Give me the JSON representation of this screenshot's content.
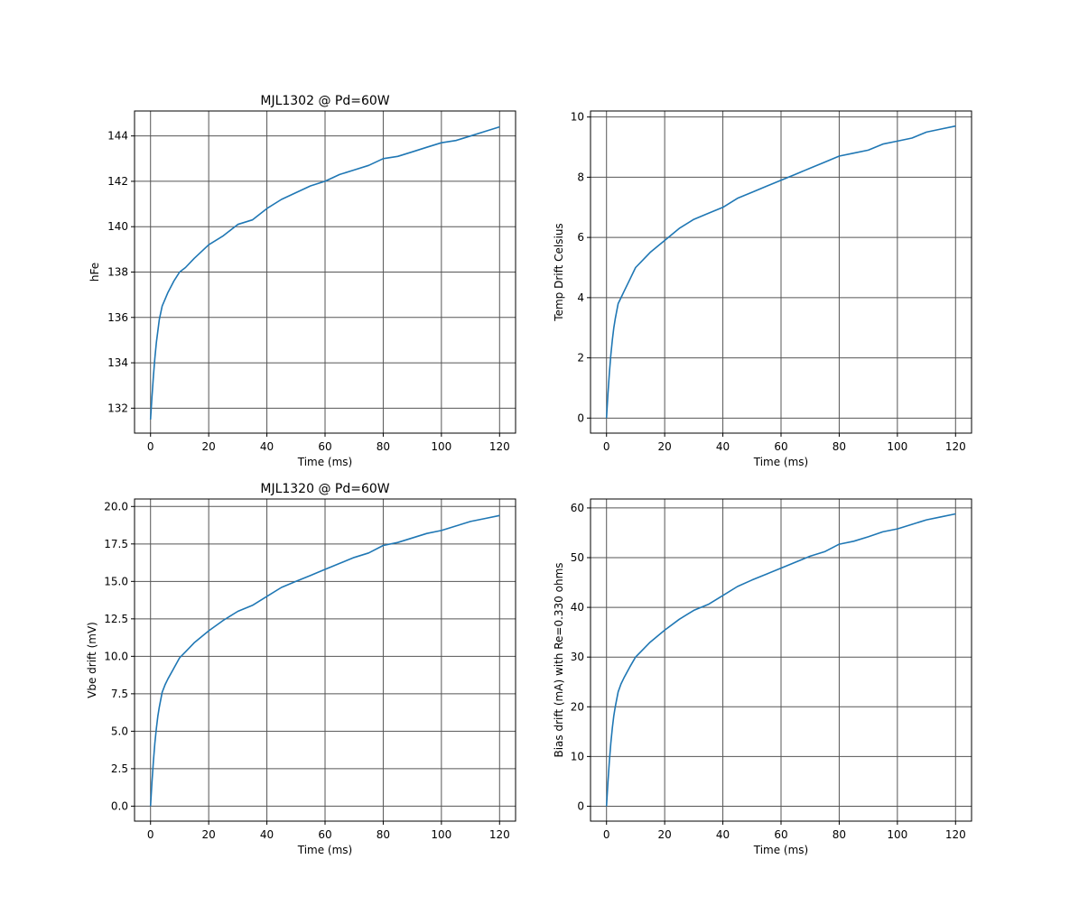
{
  "chart_data": [
    {
      "type": "line",
      "title": "MJL1302 @ Pd=60W",
      "xlabel": "Time (ms)",
      "ylabel": "hFe",
      "xlim": [
        -5.5,
        125.5
      ],
      "ylim": [
        130.9,
        145.1
      ],
      "xticks": [
        0,
        20,
        40,
        60,
        80,
        100,
        120
      ],
      "yticks": [
        132,
        134,
        136,
        138,
        140,
        142,
        144
      ],
      "yticklabels": [
        "132",
        "134",
        "136",
        "138",
        "140",
        "142",
        "144"
      ],
      "grid": true,
      "series": [
        {
          "color": "#1f77b4",
          "x": [
            0,
            0.5,
            1,
            1.5,
            2,
            2.5,
            3,
            4,
            5,
            6,
            8,
            10,
            12,
            15,
            20,
            25,
            30,
            35,
            40,
            45,
            50,
            55,
            60,
            65,
            70,
            75,
            80,
            85,
            90,
            95,
            100,
            105,
            110,
            115,
            120
          ],
          "values": [
            131.5,
            132.5,
            133.4,
            134.2,
            134.9,
            135.4,
            135.9,
            136.5,
            136.8,
            137.1,
            137.6,
            138.0,
            138.2,
            138.6,
            139.2,
            139.6,
            140.1,
            140.3,
            140.8,
            141.2,
            141.5,
            141.8,
            142.0,
            142.3,
            142.5,
            142.7,
            143.0,
            143.1,
            143.3,
            143.5,
            143.7,
            143.8,
            144.0,
            144.2,
            144.4
          ]
        }
      ]
    },
    {
      "type": "line",
      "title": "",
      "xlabel": "Time (ms)",
      "ylabel": "Temp Drift Celsius",
      "xlim": [
        -5.5,
        125.5
      ],
      "ylim": [
        -0.5,
        10.2
      ],
      "xticks": [
        0,
        20,
        40,
        60,
        80,
        100,
        120
      ],
      "yticks": [
        0,
        2,
        4,
        6,
        8,
        10
      ],
      "yticklabels": [
        "0",
        "2",
        "4",
        "6",
        "8",
        "10"
      ],
      "grid": true,
      "series": [
        {
          "color": "#1f77b4",
          "x": [
            0,
            0.5,
            1,
            1.5,
            2,
            2.5,
            3,
            4,
            5,
            6,
            8,
            10,
            12,
            15,
            20,
            25,
            30,
            35,
            40,
            45,
            50,
            55,
            60,
            65,
            70,
            75,
            80,
            85,
            90,
            95,
            100,
            105,
            110,
            115,
            120
          ],
          "values": [
            0.0,
            0.8,
            1.5,
            2.1,
            2.6,
            3.0,
            3.3,
            3.8,
            4.0,
            4.2,
            4.6,
            5.0,
            5.2,
            5.5,
            5.9,
            6.3,
            6.6,
            6.8,
            7.0,
            7.3,
            7.5,
            7.7,
            7.9,
            8.1,
            8.3,
            8.5,
            8.7,
            8.8,
            8.9,
            9.1,
            9.2,
            9.3,
            9.5,
            9.6,
            9.7
          ]
        }
      ]
    },
    {
      "type": "line",
      "title": "MJL1320 @ Pd=60W",
      "xlabel": "Time (ms)",
      "ylabel": "Vbe drift (mV)",
      "xlim": [
        -5.5,
        125.5
      ],
      "ylim": [
        -1.0,
        20.5
      ],
      "xticks": [
        0,
        20,
        40,
        60,
        80,
        100,
        120
      ],
      "yticks": [
        0,
        2.5,
        5,
        7.5,
        10,
        12.5,
        15,
        17.5,
        20
      ],
      "yticklabels": [
        "0.0",
        "2.5",
        "5.0",
        "7.5",
        "10.0",
        "12.5",
        "15.0",
        "17.5",
        "20.0"
      ],
      "grid": true,
      "series": [
        {
          "color": "#1f77b4",
          "x": [
            0,
            0.5,
            1,
            1.5,
            2,
            2.5,
            3,
            4,
            5,
            6,
            8,
            10,
            12,
            15,
            20,
            25,
            30,
            35,
            40,
            45,
            50,
            55,
            60,
            65,
            70,
            75,
            80,
            85,
            90,
            95,
            100,
            105,
            110,
            115,
            120
          ],
          "values": [
            0.0,
            1.6,
            3.0,
            4.2,
            5.2,
            6.0,
            6.6,
            7.6,
            8.1,
            8.5,
            9.2,
            9.9,
            10.3,
            10.9,
            11.7,
            12.4,
            13.0,
            13.4,
            14.0,
            14.6,
            15.0,
            15.4,
            15.8,
            16.2,
            16.6,
            16.9,
            17.4,
            17.6,
            17.9,
            18.2,
            18.4,
            18.7,
            19.0,
            19.2,
            19.4
          ]
        }
      ]
    },
    {
      "type": "line",
      "title": "",
      "xlabel": "Time (ms)",
      "ylabel": "Bias drift (mA) with Re=0.330 ohms",
      "xlim": [
        -5.5,
        125.5
      ],
      "ylim": [
        -3.0,
        61.8
      ],
      "xticks": [
        0,
        20,
        40,
        60,
        80,
        100,
        120
      ],
      "yticks": [
        0,
        10,
        20,
        30,
        40,
        50,
        60
      ],
      "yticklabels": [
        "0",
        "10",
        "20",
        "30",
        "40",
        "50",
        "60"
      ],
      "grid": true,
      "series": [
        {
          "color": "#1f77b4",
          "x": [
            0,
            0.5,
            1,
            1.5,
            2,
            2.5,
            3,
            4,
            5,
            6,
            8,
            10,
            12,
            15,
            20,
            25,
            30,
            35,
            40,
            45,
            50,
            55,
            60,
            65,
            70,
            75,
            80,
            85,
            90,
            95,
            100,
            105,
            110,
            115,
            120
          ],
          "values": [
            0,
            4.8,
            9.1,
            12.7,
            15.8,
            18.2,
            20.0,
            23.0,
            24.6,
            25.8,
            28.0,
            30.0,
            31.2,
            33.0,
            35.4,
            37.6,
            39.4,
            40.6,
            42.4,
            44.2,
            45.5,
            46.7,
            47.9,
            49.1,
            50.3,
            51.2,
            52.7,
            53.3,
            54.2,
            55.2,
            55.8,
            56.7,
            57.6,
            58.2,
            58.8
          ]
        }
      ]
    }
  ]
}
